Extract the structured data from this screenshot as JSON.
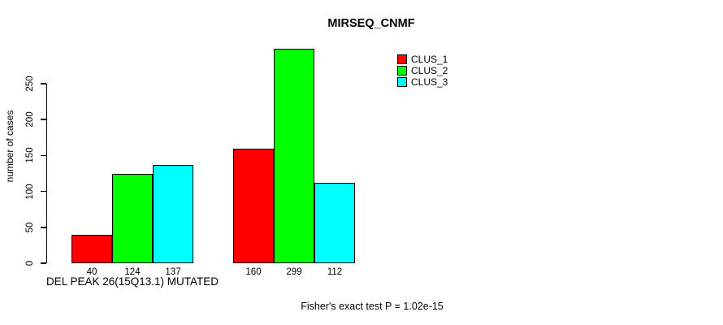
{
  "chart_data": {
    "type": "bar",
    "title": "MIRSEQ_CNMF",
    "ylabel": "number of cases",
    "yticks": [
      0,
      50,
      100,
      150,
      200,
      250
    ],
    "ylim": [
      0,
      300
    ],
    "grid": false,
    "legend_position": "top-right",
    "categories": [
      "DEL PEAK 26(15Q13.1) MUTATED",
      ""
    ],
    "series": [
      {
        "name": "CLUS_1",
        "color": "#FF0000",
        "values": [
          40,
          160
        ]
      },
      {
        "name": "CLUS_2",
        "color": "#00FF00",
        "values": [
          124,
          299
        ]
      },
      {
        "name": "CLUS_3",
        "color": "#00FFFF",
        "values": [
          137,
          112
        ]
      }
    ],
    "bar_value_labels_shown": true,
    "footnote": "Fisher's exact test P = 1.02e-15"
  }
}
